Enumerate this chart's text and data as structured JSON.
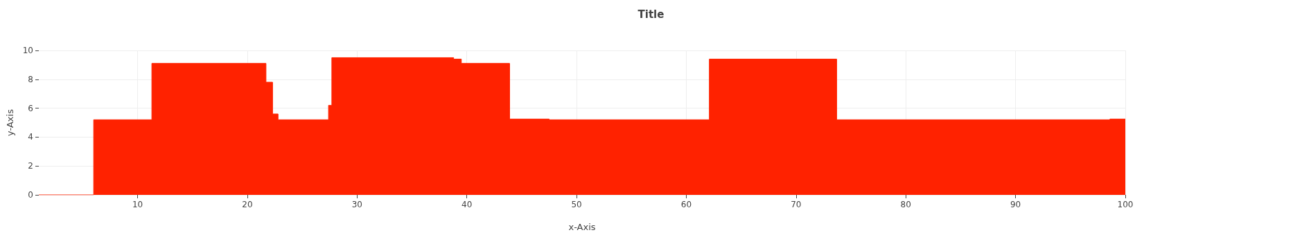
{
  "chart_data": {
    "type": "area",
    "title": "Title",
    "xlabel": "x-Axis",
    "ylabel": "y-Axis",
    "x": [
      1,
      6,
      6,
      11.3,
      11.3,
      21.7,
      21.7,
      22.3,
      22.3,
      22.8,
      22.8,
      27.4,
      27.4,
      27.7,
      27.7,
      38.8,
      38.8,
      39.5,
      39.5,
      43.9,
      43.9,
      47.5,
      47.5,
      62.1,
      62.1,
      73.7,
      73.7,
      98.6,
      98.6,
      100
    ],
    "series": [
      {
        "color": "#ff2200",
        "values": [
          0,
          0,
          5.2,
          5.2,
          9.1,
          9.1,
          7.8,
          7.8,
          5.6,
          5.6,
          5.2,
          5.2,
          6.2,
          6.2,
          9.5,
          9.5,
          9.4,
          9.4,
          9.1,
          9.1,
          5.25,
          5.25,
          5.2,
          5.2,
          9.4,
          9.4,
          5.2,
          5.2,
          5.25,
          5.25
        ]
      }
    ],
    "xlim": [
      1,
      100
    ],
    "ylim": [
      0,
      10
    ],
    "xticks": [
      10,
      20,
      30,
      40,
      50,
      60,
      70,
      80,
      90,
      100
    ],
    "yticks": [
      0,
      2,
      4,
      6,
      8,
      10
    ],
    "grid": true,
    "marker": "none"
  }
}
